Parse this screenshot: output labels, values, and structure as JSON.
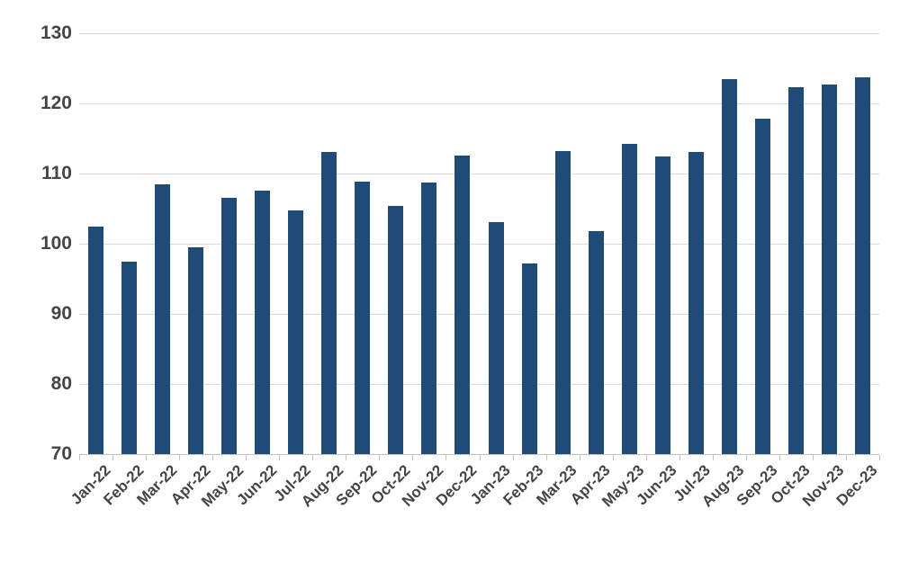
{
  "chart_data": {
    "type": "bar",
    "title": "",
    "xlabel": "",
    "ylabel": "",
    "categories": [
      "Jan-22",
      "Feb-22",
      "Mar-22",
      "Apr-22",
      "May-22",
      "Jun-22",
      "Jul-22",
      "Aug-22",
      "Sep-22",
      "Oct-22",
      "Nov-22",
      "Dec-22",
      "Jan-23",
      "Feb-23",
      "Mar-23",
      "Apr-23",
      "May-23",
      "Jun-23",
      "Jul-23",
      "Aug-23",
      "Sep-23",
      "Oct-23",
      "Nov-23",
      "Dec-23"
    ],
    "values": [
      102.4,
      97.4,
      108.4,
      99.5,
      106.6,
      107.6,
      104.7,
      113.1,
      108.9,
      105.4,
      108.7,
      112.6,
      103.1,
      97.2,
      113.2,
      101.8,
      114.2,
      112.4,
      113.1,
      123.4,
      117.8,
      122.3,
      122.7,
      123.7
    ],
    "ylim": [
      70,
      130
    ],
    "yticks": [
      70,
      80,
      90,
      100,
      110,
      120,
      130
    ],
    "grid": "horizontal",
    "legend": "none",
    "x_label_rotation_deg": -45,
    "colors": {
      "bar": "#1f4b79",
      "gridline": "#d9d9d9",
      "baseline": "#c3c3c3",
      "tick": "#c3c3c3",
      "axis_label": "#454545"
    }
  }
}
